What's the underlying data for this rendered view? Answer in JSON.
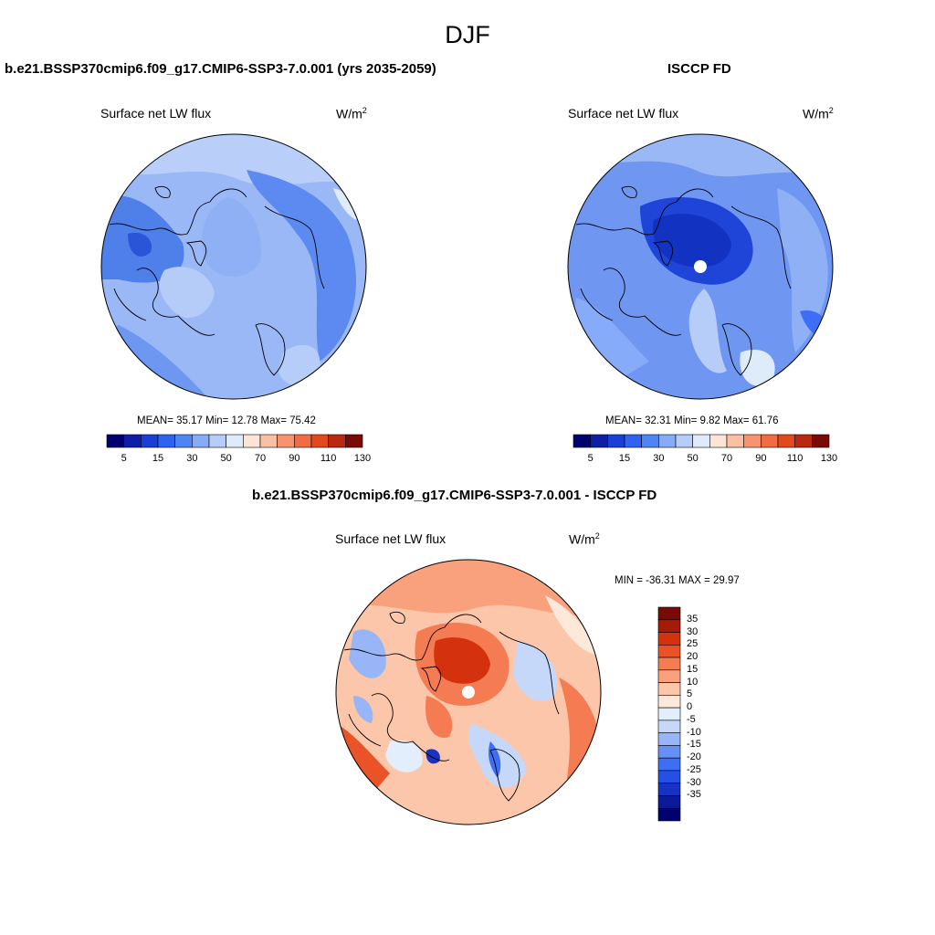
{
  "title": "DJF",
  "panels": [
    {
      "title": "b.e21.BSSP370cmip6.f09_g17.CMIP6-SSP3-7.0.001 (yrs 2035-2059)",
      "variable": "Surface net LW flux",
      "units_base": "W/m",
      "units_exp": "2",
      "stats": "MEAN=  35.17  Min=  12.78  Max=  75.42"
    },
    {
      "title": "ISCCP FD",
      "variable": "Surface net LW flux",
      "units_base": "W/m",
      "units_exp": "2",
      "stats": "MEAN=  32.31  Min=   9.82  Max=  61.76"
    },
    {
      "title": "b.e21.BSSP370cmip6.f09_g17.CMIP6-SSP3-7.0.001 - ISCCP FD",
      "variable": "Surface net LW flux",
      "units_base": "W/m",
      "units_exp": "2",
      "stats": "MIN = -36.31 MAX =  29.97"
    }
  ],
  "colorbar_main": {
    "colors": [
      "#00006e",
      "#0c1fa6",
      "#1a3fd4",
      "#2e62f0",
      "#4f84f5",
      "#86abf8",
      "#b7cdf9",
      "#deebfb",
      "#fde4d6",
      "#fbbfa3",
      "#f7946f",
      "#f26c43",
      "#e24a1e",
      "#b9280f",
      "#7a0a05"
    ],
    "ticks": [
      "5",
      "15",
      "30",
      "50",
      "70",
      "90",
      "110",
      "130"
    ]
  },
  "colorbar_diff": {
    "colors": [
      "#00006e",
      "#0b1a99",
      "#1633c4",
      "#2550e8",
      "#3e6ef3",
      "#6790f6",
      "#98b5f8",
      "#c6d8fa",
      "#e3eefc",
      "#fde8da",
      "#fcc6ab",
      "#f9a07c",
      "#f57b52",
      "#ea5228",
      "#d4320f",
      "#a81a08",
      "#7a0a05"
    ],
    "ticks": [
      "35",
      "30",
      "25",
      "20",
      "15",
      "10",
      "5",
      "0",
      "-5",
      "-10",
      "-15",
      "-20",
      "-25",
      "-30",
      "-35"
    ]
  }
}
